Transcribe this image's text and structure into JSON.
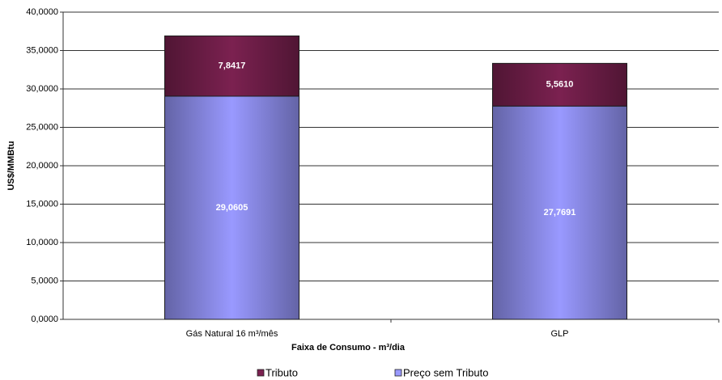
{
  "chart_data": {
    "type": "stacked_bar",
    "x_label": "Faixa de Consumo  - m³/dia",
    "y_label": "US$/MMBtu",
    "categories": [
      "Gás Natural  16 m³/mês",
      "GLP"
    ],
    "series": [
      {
        "name": "Preço sem Tributo",
        "color": "#9999ff",
        "values": [
          29.0605,
          27.7691
        ],
        "value_labels": [
          "29,0605",
          "27,7691"
        ]
      },
      {
        "name": "Tributo",
        "color": "#7b2150",
        "values": [
          7.8417,
          5.561
        ],
        "value_labels": [
          "7,8417",
          "5,5610"
        ]
      }
    ],
    "ylim": [
      0,
      40
    ],
    "yticks": [
      {
        "value": 0,
        "label": "0,0000"
      },
      {
        "value": 5,
        "label": "5,0000"
      },
      {
        "value": 10,
        "label": "10,0000"
      },
      {
        "value": 15,
        "label": "15,0000"
      },
      {
        "value": 20,
        "label": "20,0000"
      },
      {
        "value": 25,
        "label": "25,0000"
      },
      {
        "value": 30,
        "label": "30,0000"
      },
      {
        "value": 35,
        "label": "35,0000"
      },
      {
        "value": 40,
        "label": "40,0000"
      }
    ],
    "grid": true
  }
}
